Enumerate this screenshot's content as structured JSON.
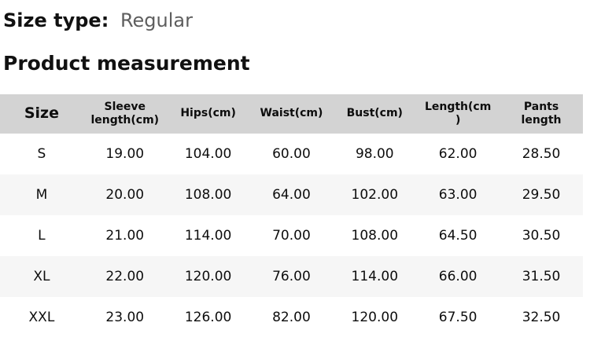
{
  "header": {
    "size_type_label": "Size type:",
    "size_type_value": "Regular",
    "section_title": "Product measurement"
  },
  "table": {
    "headers": [
      "Size",
      "Sleeve\nlength(cm)",
      "Hips(cm)",
      "Waist(cm)",
      "Bust(cm)",
      "Length(cm\n)",
      "Pants\nlength"
    ],
    "rows": [
      {
        "size": "S",
        "values": [
          "19.00",
          "104.00",
          "60.00",
          "98.00",
          "62.00",
          "28.50"
        ]
      },
      {
        "size": "M",
        "values": [
          "20.00",
          "108.00",
          "64.00",
          "102.00",
          "63.00",
          "29.50"
        ]
      },
      {
        "size": "L",
        "values": [
          "21.00",
          "114.00",
          "70.00",
          "108.00",
          "64.50",
          "30.50"
        ]
      },
      {
        "size": "XL",
        "values": [
          "22.00",
          "120.00",
          "76.00",
          "114.00",
          "66.00",
          "31.50"
        ]
      },
      {
        "size": "XXL",
        "values": [
          "23.00",
          "126.00",
          "82.00",
          "120.00",
          "67.50",
          "32.50"
        ]
      }
    ]
  },
  "colors": {
    "header_bg": "#d3d3d3",
    "stripe_bg": "#f6f6f6",
    "muted_text": "#5e5e5e",
    "text": "#0d0d0d"
  }
}
